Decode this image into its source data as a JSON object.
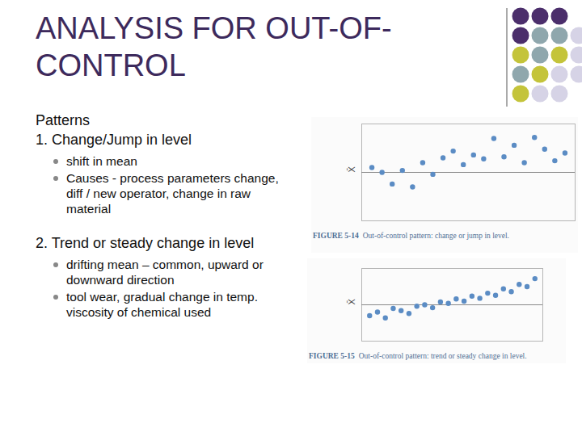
{
  "header": {
    "title": "ANALYSIS FOR OUT-OF-CONTROL"
  },
  "intro": "Patterns",
  "sections": [
    {
      "heading": "1. Change/Jump in level",
      "bullets": [
        "shift in mean",
        "Causes - process parameters change, diff / new operator, change in raw material"
      ]
    },
    {
      "heading": "2. Trend or steady change in level",
      "bullets": [
        "drifting mean – common, upward or downward direction",
        "tool wear, gradual change in temp. viscosity of chemical used"
      ]
    }
  ],
  "chart_data": [
    {
      "type": "scatter",
      "figure": "FIGURE 5-14",
      "caption": "Out-of-control pattern: change or jump in level.",
      "ylabel": "X̄",
      "color": "#5b8cc4",
      "marker": "circle",
      "tick_labels": false,
      "x": [
        1,
        2,
        3,
        4,
        5,
        6,
        7,
        8,
        9,
        10,
        11,
        12,
        13,
        14,
        15,
        16,
        17,
        18,
        19,
        20
      ],
      "values": [
        5.5,
        5.0,
        3.8,
        5.2,
        3.5,
        6.0,
        4.8,
        6.5,
        7.2,
        5.8,
        6.8,
        6.4,
        8.5,
        6.6,
        7.8,
        6.0,
        8.6,
        7.4,
        6.2,
        7.0
      ],
      "xlim": [
        0,
        21
      ],
      "ylim": [
        0,
        10
      ],
      "centerline": 5
    },
    {
      "type": "scatter",
      "figure": "FIGURE 5-15",
      "caption": "Out-of-control pattern: trend or steady change in level.",
      "ylabel": "X̄",
      "color": "#5b8cc4",
      "marker": "circle",
      "tick_labels": false,
      "x": [
        1,
        2,
        3,
        4,
        5,
        6,
        7,
        8,
        9,
        10,
        11,
        12,
        13,
        14,
        15,
        16,
        17,
        18,
        19,
        20,
        21,
        22
      ],
      "values": [
        3.5,
        4.0,
        3.2,
        4.5,
        4.2,
        3.8,
        4.8,
        5.0,
        4.6,
        5.4,
        5.2,
        5.8,
        5.5,
        6.2,
        5.9,
        6.6,
        6.3,
        7.2,
        6.8,
        7.8,
        7.5,
        8.6
      ],
      "xlim": [
        0,
        23
      ],
      "ylim": [
        0,
        10
      ],
      "centerline": 5
    }
  ]
}
